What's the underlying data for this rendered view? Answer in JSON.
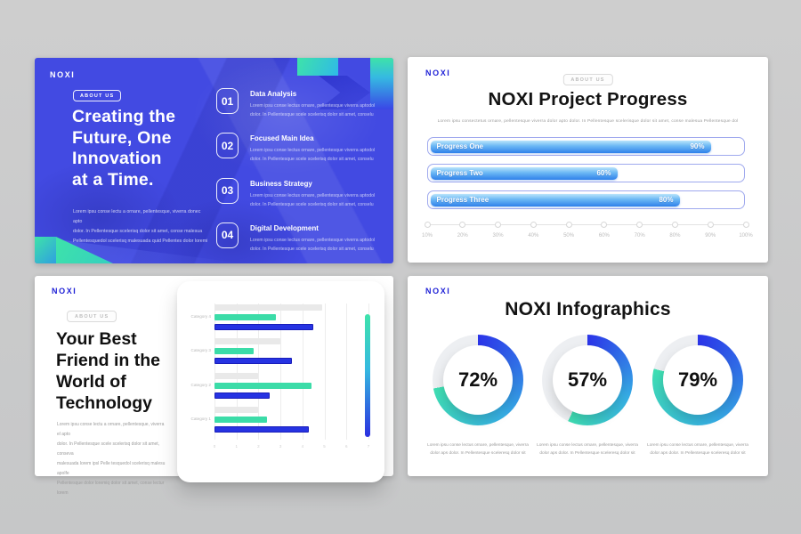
{
  "colors": {
    "background": "#c9c9ca",
    "slide1_bg": "#424ae2",
    "brand_blue": "#1d1fd6",
    "mint": "#3ee3a9",
    "royal": "#2633e2",
    "progress_border": "#9fa9ee",
    "progress_fill_top": "#b9e4fb",
    "progress_fill_bottom": "#2f80ea",
    "donut_start": "#2b34e8",
    "donut_mid": "#36aee6",
    "donut_end": "#3fdfb2",
    "donut_track": "#edeff2",
    "bar_gray": "#e9e9e9",
    "bar_green": "#3bdca8",
    "bar_blue": "#2633e2"
  },
  "slide1": {
    "logo": "NOXI",
    "badge": "ABOUT US",
    "title_lines": [
      "Creating the",
      "Future, One",
      "Innovation",
      "at a Time."
    ],
    "body_lines": [
      "Lorem ipsu conse lectu a ornare, pellentesque, viverra donec apto",
      "dolor. In Pellentesque scelerisq dolor sit amet, conse malesua",
      "Pellentesquedol scelerisq malesuada quid Pellentes dolor loremi"
    ],
    "items": [
      {
        "number": "01",
        "title": "Data Analysis",
        "line1": "Lorem ipsu conse lectus ornare, pellentesque viverra aptodol",
        "line2": "dolor. In Pellentesque scele scelerisq dolor sit amet, conselu"
      },
      {
        "number": "02",
        "title": "Focused Main Idea",
        "line1": "Lorem ipsu conse lectus ornare, pellentesque viverra aptodol",
        "line2": "dolor. In Pellentesque scele scelerisq dolor sit amet, conselu"
      },
      {
        "number": "03",
        "title": "Business Strategy",
        "line1": "Lorem ipsu conse lectus ornare, pellentesque viverra aptodol",
        "line2": "dolor. In Pellentesque scele scelerisq dolor sit amet, conselu"
      },
      {
        "number": "04",
        "title": "Digital Development",
        "line1": "Lorem ipsu conse lectus ornare, pellentesque viverra aptodol",
        "line2": "dolor. In Pellentesque scele scelerisq dolor sit amet, conselu"
      }
    ]
  },
  "slide2": {
    "logo": "NOXI",
    "badge": "ABOUT US",
    "title": "NOXI Project Progress",
    "subtitle": "Lorem ipsu consectetus ornare, pellentesque viverra dolor apto dolor. In Pellentesque scelerisque dolor sit amet, conse malesua Pellentesque dol",
    "bars": [
      {
        "label": "Progress One",
        "value": 90,
        "value_label": "90%"
      },
      {
        "label": "Progress Two",
        "value": 60,
        "value_label": "60%"
      },
      {
        "label": "Progress Three",
        "value": 80,
        "value_label": "80%"
      }
    ],
    "scale": [
      "10%",
      "20%",
      "30%",
      "40%",
      "50%",
      "60%",
      "70%",
      "80%",
      "90%",
      "100%"
    ]
  },
  "slide3": {
    "logo": "NOXI",
    "badge": "ABOUT US",
    "title_lines": [
      "Your Best",
      "Friend in the",
      "World of",
      "Technology"
    ],
    "body_lines": [
      "Lorem ipsu conse lectu a ornare, pellentesque, viverra el apto",
      "dolor. In Pellentesque scele scelerisq dolor sit amet, conseva",
      "malesuada lorem ipsl Pelle tesquedol scelerisq malesu apolfe",
      "Pellentesque dolor loremiq dolor sit amet, conse lectur",
      "lorem"
    ],
    "chart": {
      "categories": [
        "Category 4",
        "Category 3",
        "Category 2",
        "Category 1"
      ],
      "series": [
        {
          "color_key": "bar_gray",
          "values": [
            4.9,
            3.0,
            2.0,
            2.0
          ]
        },
        {
          "color_key": "bar_green",
          "values": [
            2.8,
            1.8,
            4.4,
            2.4
          ]
        },
        {
          "color_key": "bar_blue",
          "values": [
            4.5,
            3.5,
            2.5,
            4.3
          ]
        }
      ],
      "xmax": 7,
      "xticks": [
        "0",
        "1",
        "2",
        "3",
        "4",
        "5",
        "6",
        "7"
      ]
    }
  },
  "slide4": {
    "logo": "NOXI",
    "title": "NOXI Infographics",
    "donuts": [
      {
        "value": 72,
        "label": "72%",
        "caption1": "Lorem ipsu conse lectus ornare, pellentesque, viverra",
        "caption2": "dolor aps dolor. In Pellentesque sceleresq dolor sit"
      },
      {
        "value": 57,
        "label": "57%",
        "caption1": "Lorem ipsu conse lectus ornare, pellentesque, viverra",
        "caption2": "dolor aps dolor. In Pellentesque sceleresq dolor sit"
      },
      {
        "value": 79,
        "label": "79%",
        "caption1": "Lorem ipsu conse lectus ornare, pellentesque, viverra",
        "caption2": "dolor aps dolor. In Pellentesque sceleresq dolor sit"
      }
    ]
  },
  "chart_data": [
    {
      "type": "bar",
      "subtype": "progress",
      "title": "NOXI Project Progress",
      "categories": [
        "Progress One",
        "Progress Two",
        "Progress Three"
      ],
      "values": [
        90,
        60,
        80
      ],
      "xlim": [
        0,
        100
      ],
      "axis_ticks": [
        "10%",
        "20%",
        "30%",
        "40%",
        "50%",
        "60%",
        "70%",
        "80%",
        "90%",
        "100%"
      ]
    },
    {
      "type": "bar",
      "subtype": "horizontal-grouped",
      "categories": [
        "Category 4",
        "Category 3",
        "Category 2",
        "Category 1"
      ],
      "series": [
        {
          "name": "gray",
          "values": [
            4.9,
            3.0,
            2.0,
            2.0
          ]
        },
        {
          "name": "green",
          "values": [
            2.8,
            1.8,
            4.4,
            2.4
          ]
        },
        {
          "name": "blue",
          "values": [
            4.5,
            3.5,
            2.5,
            4.3
          ]
        }
      ],
      "xlim": [
        0,
        7
      ],
      "grid": true,
      "legend": false
    },
    {
      "type": "pie",
      "subtype": "donut",
      "title": "NOXI Infographics",
      "values": [
        72,
        57,
        79
      ],
      "labels": [
        "72%",
        "57%",
        "79%"
      ]
    }
  ]
}
